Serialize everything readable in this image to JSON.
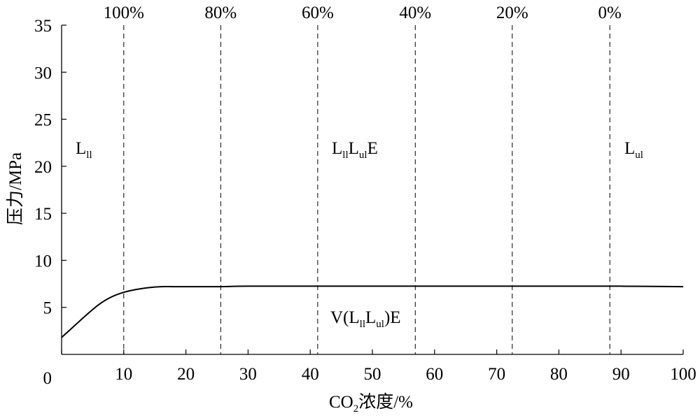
{
  "chart_data": {
    "type": "line",
    "xlabel": "CO2浓度/%",
    "ylabel": "压力/MPa",
    "xlim": [
      0,
      100
    ],
    "ylim": [
      0,
      35
    ],
    "xticks": [
      0,
      10,
      20,
      30,
      40,
      50,
      60,
      70,
      80,
      90,
      100
    ],
    "yticks": [
      5,
      10,
      15,
      20,
      25,
      30,
      35
    ],
    "grid": false,
    "series": [
      {
        "x": [
          0,
          2,
          4,
          6,
          8,
          10,
          12,
          14,
          16,
          18,
          20,
          25,
          30,
          40,
          50,
          60,
          70,
          80,
          90,
          100
        ],
        "y": [
          1.8,
          3.0,
          4.2,
          5.3,
          6.1,
          6.6,
          6.9,
          7.1,
          7.2,
          7.2,
          7.2,
          7.2,
          7.25,
          7.25,
          7.25,
          7.25,
          7.25,
          7.25,
          7.25,
          7.2
        ]
      }
    ],
    "reference_lines": [
      {
        "x": 10,
        "label": "100%"
      },
      {
        "x": 25.6,
        "label": "80%"
      },
      {
        "x": 41.2,
        "label": "60%"
      },
      {
        "x": 56.9,
        "label": "40%"
      },
      {
        "x": 72.5,
        "label": "20%"
      },
      {
        "x": 88.2,
        "label": "0%"
      }
    ],
    "annotations": [
      {
        "text": "Lll",
        "x": 2.5,
        "y": 21.5
      },
      {
        "text": "LllLulE",
        "x": 43,
        "y": 21.5
      },
      {
        "text": "Lul",
        "x": 90.5,
        "y": 21.5
      },
      {
        "text": "V(LllLul)E",
        "x": 40.5,
        "y": 3.5
      }
    ]
  }
}
